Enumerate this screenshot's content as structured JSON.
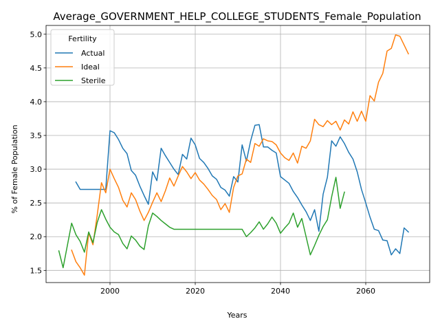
{
  "chart_data": {
    "type": "line",
    "title": "Average_GOVERNMENT_HELP_COLLEGE_STUDENTS_Female_Population",
    "xlabel": "Years",
    "ylabel": "% of Female Population",
    "xlim": [
      1985,
      2075
    ],
    "ylim": [
      1.32,
      5.13
    ],
    "xticks": [
      2000,
      2020,
      2040,
      2060
    ],
    "yticks": [
      1.5,
      2.0,
      2.5,
      3.0,
      3.5,
      4.0,
      4.5,
      5.0
    ],
    "ytick_labels": [
      "1.5",
      "2.0",
      "2.5",
      "3.0",
      "3.5",
      "4.0",
      "4.5",
      "5.0"
    ],
    "grid": true,
    "legend": {
      "title": "Fertility",
      "position": "top-left"
    },
    "series": [
      {
        "name": "Actual",
        "color": "#1f77b4",
        "points": [
          [
            1992,
            2.81
          ],
          [
            1993,
            2.7
          ],
          [
            1994,
            2.7
          ],
          [
            1995,
            2.7
          ],
          [
            1996,
            2.7
          ],
          [
            1997,
            2.7
          ],
          [
            1998,
            2.7
          ],
          [
            1999,
            2.7
          ],
          [
            2000,
            3.57
          ],
          [
            2001,
            3.54
          ],
          [
            2002,
            3.44
          ],
          [
            2003,
            3.31
          ],
          [
            2004,
            3.23
          ],
          [
            2005,
            2.98
          ],
          [
            2006,
            2.91
          ],
          [
            2007,
            2.75
          ],
          [
            2008,
            2.61
          ],
          [
            2009,
            2.48
          ],
          [
            2010,
            2.96
          ],
          [
            2011,
            2.83
          ],
          [
            2012,
            3.31
          ],
          [
            2013,
            3.2
          ],
          [
            2014,
            3.1
          ],
          [
            2015,
            3.0
          ],
          [
            2016,
            2.92
          ],
          [
            2017,
            3.22
          ],
          [
            2018,
            3.15
          ],
          [
            2019,
            3.46
          ],
          [
            2020,
            3.36
          ],
          [
            2021,
            3.16
          ],
          [
            2022,
            3.1
          ],
          [
            2023,
            3.01
          ],
          [
            2024,
            2.9
          ],
          [
            2025,
            2.85
          ],
          [
            2026,
            2.73
          ],
          [
            2027,
            2.69
          ],
          [
            2028,
            2.6
          ],
          [
            2029,
            2.89
          ],
          [
            2030,
            2.81
          ],
          [
            2031,
            3.36
          ],
          [
            2032,
            3.12
          ],
          [
            2033,
            3.42
          ],
          [
            2034,
            3.65
          ],
          [
            2035,
            3.66
          ],
          [
            2036,
            3.33
          ],
          [
            2037,
            3.33
          ],
          [
            2038,
            3.28
          ],
          [
            2039,
            3.24
          ],
          [
            2040,
            2.89
          ],
          [
            2041,
            2.84
          ],
          [
            2042,
            2.79
          ],
          [
            2043,
            2.67
          ],
          [
            2044,
            2.58
          ],
          [
            2045,
            2.47
          ],
          [
            2046,
            2.37
          ],
          [
            2047,
            2.24
          ],
          [
            2048,
            2.4
          ],
          [
            2049,
            2.08
          ],
          [
            2050,
            2.63
          ],
          [
            2051,
            2.88
          ],
          [
            2052,
            3.42
          ],
          [
            2053,
            3.34
          ],
          [
            2054,
            3.48
          ],
          [
            2055,
            3.38
          ],
          [
            2056,
            3.25
          ],
          [
            2057,
            3.15
          ],
          [
            2058,
            2.96
          ],
          [
            2059,
            2.7
          ],
          [
            2060,
            2.5
          ],
          [
            2061,
            2.29
          ],
          [
            2062,
            2.11
          ],
          [
            2063,
            2.09
          ],
          [
            2064,
            1.95
          ],
          [
            2065,
            1.94
          ],
          [
            2066,
            1.73
          ],
          [
            2067,
            1.82
          ],
          [
            2068,
            1.75
          ],
          [
            2069,
            2.13
          ],
          [
            2070,
            2.07
          ]
        ]
      },
      {
        "name": "Ideal",
        "color": "#ff7f0e",
        "points": [
          [
            1991,
            1.8
          ],
          [
            1992,
            1.63
          ],
          [
            1993,
            1.54
          ],
          [
            1994,
            1.43
          ],
          [
            1995,
            2.06
          ],
          [
            1996,
            1.88
          ],
          [
            1997,
            2.32
          ],
          [
            1998,
            2.8
          ],
          [
            1999,
            2.65
          ],
          [
            2000,
            3.0
          ],
          [
            2001,
            2.86
          ],
          [
            2002,
            2.73
          ],
          [
            2003,
            2.54
          ],
          [
            2004,
            2.44
          ],
          [
            2005,
            2.65
          ],
          [
            2006,
            2.55
          ],
          [
            2007,
            2.38
          ],
          [
            2008,
            2.24
          ],
          [
            2009,
            2.36
          ],
          [
            2010,
            2.51
          ],
          [
            2011,
            2.65
          ],
          [
            2012,
            2.52
          ],
          [
            2013,
            2.68
          ],
          [
            2014,
            2.87
          ],
          [
            2015,
            2.75
          ],
          [
            2016,
            2.9
          ],
          [
            2017,
            3.04
          ],
          [
            2018,
            2.96
          ],
          [
            2019,
            2.86
          ],
          [
            2020,
            2.95
          ],
          [
            2021,
            2.84
          ],
          [
            2022,
            2.78
          ],
          [
            2023,
            2.7
          ],
          [
            2024,
            2.61
          ],
          [
            2025,
            2.55
          ],
          [
            2026,
            2.4
          ],
          [
            2027,
            2.49
          ],
          [
            2028,
            2.36
          ],
          [
            2029,
            2.73
          ],
          [
            2030,
            2.9
          ],
          [
            2031,
            2.93
          ],
          [
            2032,
            3.15
          ],
          [
            2033,
            3.1
          ],
          [
            2034,
            3.38
          ],
          [
            2035,
            3.34
          ],
          [
            2036,
            3.45
          ],
          [
            2037,
            3.42
          ],
          [
            2038,
            3.41
          ],
          [
            2039,
            3.36
          ],
          [
            2040,
            3.24
          ],
          [
            2041,
            3.17
          ],
          [
            2042,
            3.13
          ],
          [
            2043,
            3.24
          ],
          [
            2044,
            3.09
          ],
          [
            2045,
            3.34
          ],
          [
            2046,
            3.31
          ],
          [
            2047,
            3.42
          ],
          [
            2048,
            3.74
          ],
          [
            2049,
            3.66
          ],
          [
            2050,
            3.63
          ],
          [
            2051,
            3.72
          ],
          [
            2052,
            3.66
          ],
          [
            2053,
            3.71
          ],
          [
            2054,
            3.58
          ],
          [
            2055,
            3.73
          ],
          [
            2056,
            3.67
          ],
          [
            2057,
            3.85
          ],
          [
            2058,
            3.71
          ],
          [
            2059,
            3.86
          ],
          [
            2060,
            3.71
          ],
          [
            2061,
            4.09
          ],
          [
            2062,
            4.01
          ],
          [
            2063,
            4.29
          ],
          [
            2064,
            4.42
          ],
          [
            2065,
            4.75
          ],
          [
            2066,
            4.79
          ],
          [
            2067,
            4.99
          ],
          [
            2068,
            4.97
          ],
          [
            2069,
            4.84
          ],
          [
            2070,
            4.71
          ]
        ]
      },
      {
        "name": "Sterile",
        "color": "#2ca02c",
        "points": [
          [
            1988,
            1.79
          ],
          [
            1989,
            1.54
          ],
          [
            1990,
            1.87
          ],
          [
            1991,
            2.2
          ],
          [
            1992,
            2.03
          ],
          [
            1993,
            1.93
          ],
          [
            1994,
            1.77
          ],
          [
            1995,
            2.07
          ],
          [
            1996,
            1.91
          ],
          [
            1997,
            2.21
          ],
          [
            1998,
            2.4
          ],
          [
            1999,
            2.26
          ],
          [
            2000,
            2.14
          ],
          [
            2001,
            2.07
          ],
          [
            2002,
            2.03
          ],
          [
            2003,
            1.9
          ],
          [
            2004,
            1.82
          ],
          [
            2005,
            2.01
          ],
          [
            2006,
            1.95
          ],
          [
            2007,
            1.86
          ],
          [
            2008,
            1.81
          ],
          [
            2009,
            2.16
          ],
          [
            2010,
            2.35
          ],
          [
            2011,
            2.3
          ],
          [
            2012,
            2.24
          ],
          [
            2013,
            2.19
          ],
          [
            2014,
            2.14
          ],
          [
            2015,
            2.11
          ],
          [
            2016,
            2.11
          ],
          [
            2017,
            2.11
          ],
          [
            2018,
            2.11
          ],
          [
            2019,
            2.11
          ],
          [
            2020,
            2.11
          ],
          [
            2021,
            2.11
          ],
          [
            2022,
            2.11
          ],
          [
            2023,
            2.11
          ],
          [
            2024,
            2.11
          ],
          [
            2025,
            2.11
          ],
          [
            2026,
            2.11
          ],
          [
            2027,
            2.11
          ],
          [
            2028,
            2.11
          ],
          [
            2029,
            2.11
          ],
          [
            2030,
            2.11
          ],
          [
            2031,
            2.11
          ],
          [
            2032,
            2.0
          ],
          [
            2033,
            2.06
          ],
          [
            2034,
            2.13
          ],
          [
            2035,
            2.22
          ],
          [
            2036,
            2.11
          ],
          [
            2037,
            2.19
          ],
          [
            2038,
            2.29
          ],
          [
            2039,
            2.2
          ],
          [
            2040,
            2.05
          ],
          [
            2041,
            2.13
          ],
          [
            2042,
            2.2
          ],
          [
            2043,
            2.35
          ],
          [
            2044,
            2.14
          ],
          [
            2045,
            2.27
          ],
          [
            2046,
            2.0
          ],
          [
            2047,
            1.73
          ],
          [
            2048,
            1.87
          ],
          [
            2049,
            2.02
          ],
          [
            2050,
            2.15
          ],
          [
            2051,
            2.25
          ],
          [
            2052,
            2.59
          ],
          [
            2053,
            2.88
          ],
          [
            2054,
            2.42
          ],
          [
            2055,
            2.66
          ]
        ]
      }
    ]
  }
}
